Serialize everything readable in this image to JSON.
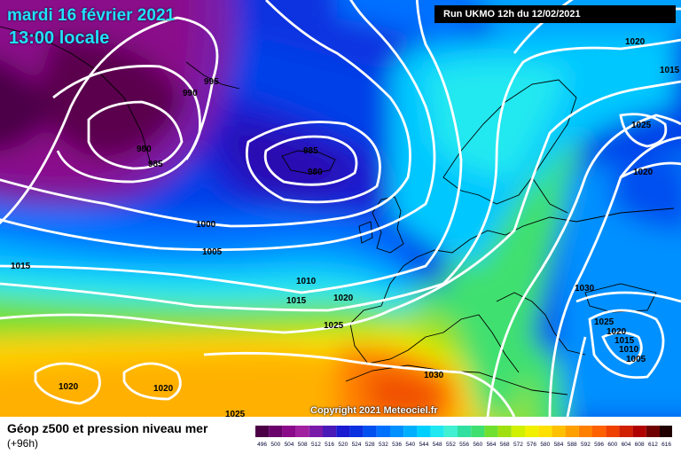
{
  "header": {
    "date": "mardi 16 février 2021",
    "time": "13:00 locale",
    "run": "Run UKMO 12h du 12/02/2021"
  },
  "copyright": "Copyright 2021 Meteociel.fr",
  "footer": {
    "title": "Géop z500 et pression niveau mer",
    "subtitle": "(+96h)"
  },
  "legend": {
    "values": [
      "496",
      "500",
      "504",
      "508",
      "512",
      "516",
      "520",
      "524",
      "528",
      "532",
      "536",
      "540",
      "544",
      "548",
      "552",
      "556",
      "560",
      "564",
      "568",
      "572",
      "576",
      "580",
      "584",
      "588",
      "592",
      "596",
      "600",
      "604",
      "608",
      "612",
      "616"
    ],
    "colors": [
      "#4b0046",
      "#6a006a",
      "#8a0a8a",
      "#a020a0",
      "#7a1aa8",
      "#4a1ab8",
      "#1a1ad0",
      "#0a30e0",
      "#0050f0",
      "#0070ff",
      "#0090ff",
      "#00b0ff",
      "#00d0ff",
      "#20e8f0",
      "#40f0d0",
      "#30e0a0",
      "#40e070",
      "#70e030",
      "#a0e010",
      "#d0f000",
      "#f0f000",
      "#ffe000",
      "#ffc000",
      "#ffa000",
      "#ff8000",
      "#ff6000",
      "#f04000",
      "#d02000",
      "#b00000",
      "#700000",
      "#200000"
    ]
  },
  "isobars": [
    {
      "label": "990"
    },
    {
      "label": "995"
    },
    {
      "label": "980"
    },
    {
      "label": "985"
    },
    {
      "label": "985"
    },
    {
      "label": "980"
    },
    {
      "label": "1000"
    },
    {
      "label": "1005"
    },
    {
      "label": "1015"
    },
    {
      "label": "1010"
    },
    {
      "label": "1015"
    },
    {
      "label": "1020"
    },
    {
      "label": "1025"
    },
    {
      "label": "1020"
    },
    {
      "label": "1020"
    },
    {
      "label": "1030"
    },
    {
      "label": "1025"
    },
    {
      "label": "1020"
    },
    {
      "label": "1015"
    },
    {
      "label": "1010"
    },
    {
      "label": "1005"
    },
    {
      "label": "1020"
    },
    {
      "label": "1025"
    },
    {
      "label": "1020"
    },
    {
      "label": "1030"
    },
    {
      "label": "1015"
    },
    {
      "label": "1025"
    }
  ]
}
